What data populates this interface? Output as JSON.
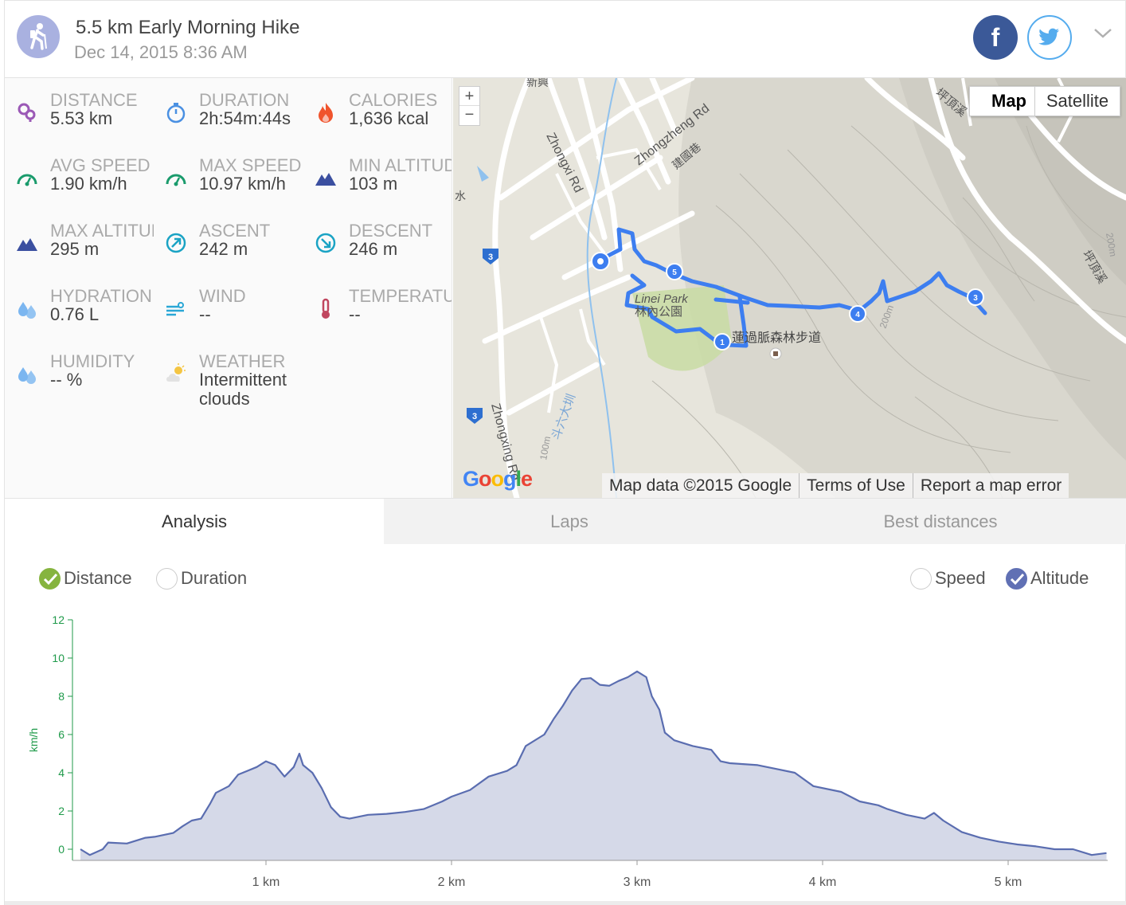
{
  "header": {
    "title": "5.5 km Early Morning Hike",
    "date": "Dec 14, 2015 8:36 AM",
    "activity_icon": "hiker-icon",
    "facebook_label": "f",
    "share_icons": [
      "facebook-icon",
      "twitter-icon"
    ],
    "expand_icon": "chevron-down-icon"
  },
  "stats": [
    {
      "label": "DISTANCE",
      "value": "5.53 km",
      "icon": "route-pin-icon",
      "color": "#9b59b6"
    },
    {
      "label": "DURATION",
      "value": "2h:54m:44s",
      "icon": "stopwatch-icon",
      "color": "#4a90e2"
    },
    {
      "label": "CALORIES",
      "value": "1,636 kcal",
      "icon": "flame-icon",
      "color": "#f0542d"
    },
    {
      "label": "AVG SPEED",
      "value": "1.90 km/h",
      "icon": "speedometer-icon",
      "color": "#1a9b6c"
    },
    {
      "label": "MAX SPEED",
      "value": "10.97 km/h",
      "icon": "speedometer-icon",
      "color": "#1a9b6c"
    },
    {
      "label": "MIN ALTITUDE",
      "value": "103 m",
      "icon": "mountain-icon",
      "color": "#3b4fa0"
    },
    {
      "label": "MAX ALTITUDE",
      "value": "295 m",
      "icon": "mountain-icon",
      "color": "#3b4fa0"
    },
    {
      "label": "ASCENT",
      "value": "242 m",
      "icon": "ascent-icon",
      "color": "#1aa3c4"
    },
    {
      "label": "DESCENT",
      "value": "246 m",
      "icon": "descent-icon",
      "color": "#1aa3c4"
    },
    {
      "label": "HYDRATION",
      "value": "0.76 L",
      "icon": "water-drops-icon",
      "color": "#7bb6f0"
    },
    {
      "label": "WIND",
      "value": "--",
      "icon": "wind-icon",
      "color": "#2aa7d6"
    },
    {
      "label": "TEMPERATURE",
      "value": "--",
      "icon": "thermometer-icon",
      "color": "#c0465f"
    },
    {
      "label": "HUMIDITY",
      "value": "-- %",
      "icon": "water-drops-icon",
      "color": "#7bb6f0"
    },
    {
      "label": "WEATHER",
      "value": "Intermittent clouds",
      "icon": "partly-cloudy-icon",
      "color": "#f4c542"
    }
  ],
  "map": {
    "zoom_in": "+",
    "zoom_out": "−",
    "map_type_map": "Map",
    "map_type_satellite": "Satellite",
    "google_logo": "Google",
    "footer": [
      "Map data ©2015 Google",
      "Terms of Use",
      "Report a map error"
    ],
    "labels": {
      "zhongzheng": "Zhongzheng Rd",
      "zhongxi": "Zhongxi Rd",
      "zhongxing": "Zhongxing Rd",
      "park_en": "Linei Park",
      "park_zh": "林內公園",
      "trail": "蓮過脈森林步道",
      "jianguo": "建國巷",
      "river": "斗六大圳",
      "pinding1": "坪頂溪",
      "pinding2": "坪頂溪",
      "contour_200a": "200m",
      "contour_200b": "200m",
      "contour_100": "100m",
      "xinxing": "新興",
      "shui": "水",
      "road3a": "3",
      "road3b": "3",
      "lap1": "1",
      "lap3": "3",
      "lap4": "4",
      "lap5": "5"
    },
    "route_color": "#3d7ef0"
  },
  "tabs": [
    "Analysis",
    "Laps",
    "Best distances"
  ],
  "chart_options": {
    "x_axis": [
      {
        "label": "Distance",
        "checked": true
      },
      {
        "label": "Duration",
        "checked": false
      }
    ],
    "series_toggle": [
      {
        "label": "Speed",
        "checked": false
      },
      {
        "label": "Altitude",
        "checked": true
      }
    ]
  },
  "chart_data": {
    "type": "area",
    "xlabel": "",
    "ylabel": "km/h",
    "xlim": [
      0,
      5.53
    ],
    "ylim": [
      0,
      12
    ],
    "y_ticks": [
      0,
      2,
      4,
      6,
      8,
      10,
      12
    ],
    "x_ticks": [
      1,
      2,
      3,
      4,
      5
    ],
    "x_tick_labels": [
      "1 km",
      "2 km",
      "3 km",
      "4 km",
      "5 km"
    ],
    "grid": false,
    "fill_color": "#d5d9e8",
    "line_color": "#5a6db0",
    "x": [
      0,
      0.05,
      0.12,
      0.15,
      0.25,
      0.35,
      0.4,
      0.5,
      0.55,
      0.6,
      0.65,
      0.7,
      0.73,
      0.75,
      0.8,
      0.85,
      0.9,
      0.95,
      1.0,
      1.05,
      1.1,
      1.15,
      1.18,
      1.2,
      1.25,
      1.3,
      1.35,
      1.4,
      1.45,
      1.55,
      1.65,
      1.75,
      1.85,
      1.95,
      2.0,
      2.1,
      2.2,
      2.3,
      2.35,
      2.4,
      2.5,
      2.55,
      2.6,
      2.65,
      2.7,
      2.75,
      2.8,
      2.85,
      2.9,
      2.95,
      3.0,
      3.05,
      3.08,
      3.12,
      3.15,
      3.2,
      3.3,
      3.4,
      3.45,
      3.5,
      3.65,
      3.75,
      3.85,
      3.95,
      4.1,
      4.2,
      4.3,
      4.35,
      4.45,
      4.55,
      4.6,
      4.65,
      4.75,
      4.85,
      4.95,
      5.05,
      5.15,
      5.25,
      5.35,
      5.45,
      5.53
    ],
    "values": [
      0.0,
      -0.3,
      0.0,
      0.35,
      0.3,
      0.6,
      0.65,
      0.85,
      1.2,
      1.5,
      1.6,
      2.4,
      2.95,
      3.05,
      3.3,
      3.9,
      4.1,
      4.3,
      4.6,
      4.4,
      3.8,
      4.3,
      5.0,
      4.4,
      4.0,
      3.2,
      2.2,
      1.7,
      1.6,
      1.8,
      1.85,
      1.95,
      2.1,
      2.5,
      2.75,
      3.1,
      3.8,
      4.1,
      4.4,
      5.4,
      6.0,
      6.8,
      7.5,
      8.3,
      8.9,
      8.95,
      8.6,
      8.55,
      8.8,
      9.0,
      9.3,
      9.0,
      8.0,
      7.3,
      6.1,
      5.7,
      5.4,
      5.2,
      4.6,
      4.5,
      4.4,
      4.2,
      4.0,
      3.3,
      3.0,
      2.5,
      2.3,
      2.1,
      1.8,
      1.6,
      1.9,
      1.5,
      0.9,
      0.6,
      0.4,
      0.25,
      0.15,
      0.0,
      0.0,
      -0.3,
      -0.2
    ]
  }
}
